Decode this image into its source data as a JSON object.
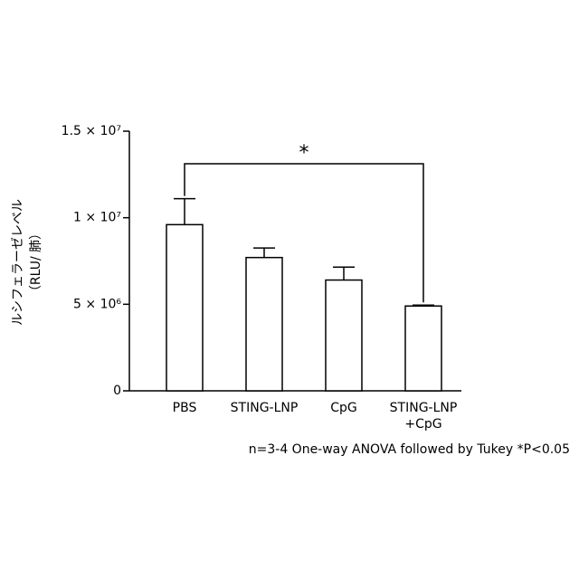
{
  "chart_data": {
    "type": "bar",
    "y_label": [
      "ルシフェラーゼレベル",
      "（RLU/ 肺）"
    ],
    "categories": [
      "PBS",
      "STING-LNP",
      "CpG",
      "STING-LNP\n+CpG"
    ],
    "values": [
      9600000,
      7700000,
      6400000,
      4900000
    ],
    "errors": [
      1500000,
      550000,
      750000,
      50000
    ],
    "color": "#ffffff",
    "ylim": [
      0,
      15000000
    ],
    "yticks": [
      0,
      {
        "value": 5000000,
        "label": "5 × 10⁶"
      },
      {
        "value": 10000000,
        "label": "1 × 10⁷"
      },
      {
        "value": 15000000,
        "label": "1.5 × 10⁷"
      }
    ],
    "significance": [
      {
        "between": [
          0,
          3
        ],
        "label": "*"
      }
    ],
    "footnote": "n=3-4 One-way ANOVA followed by Tukey *P<0.05"
  }
}
